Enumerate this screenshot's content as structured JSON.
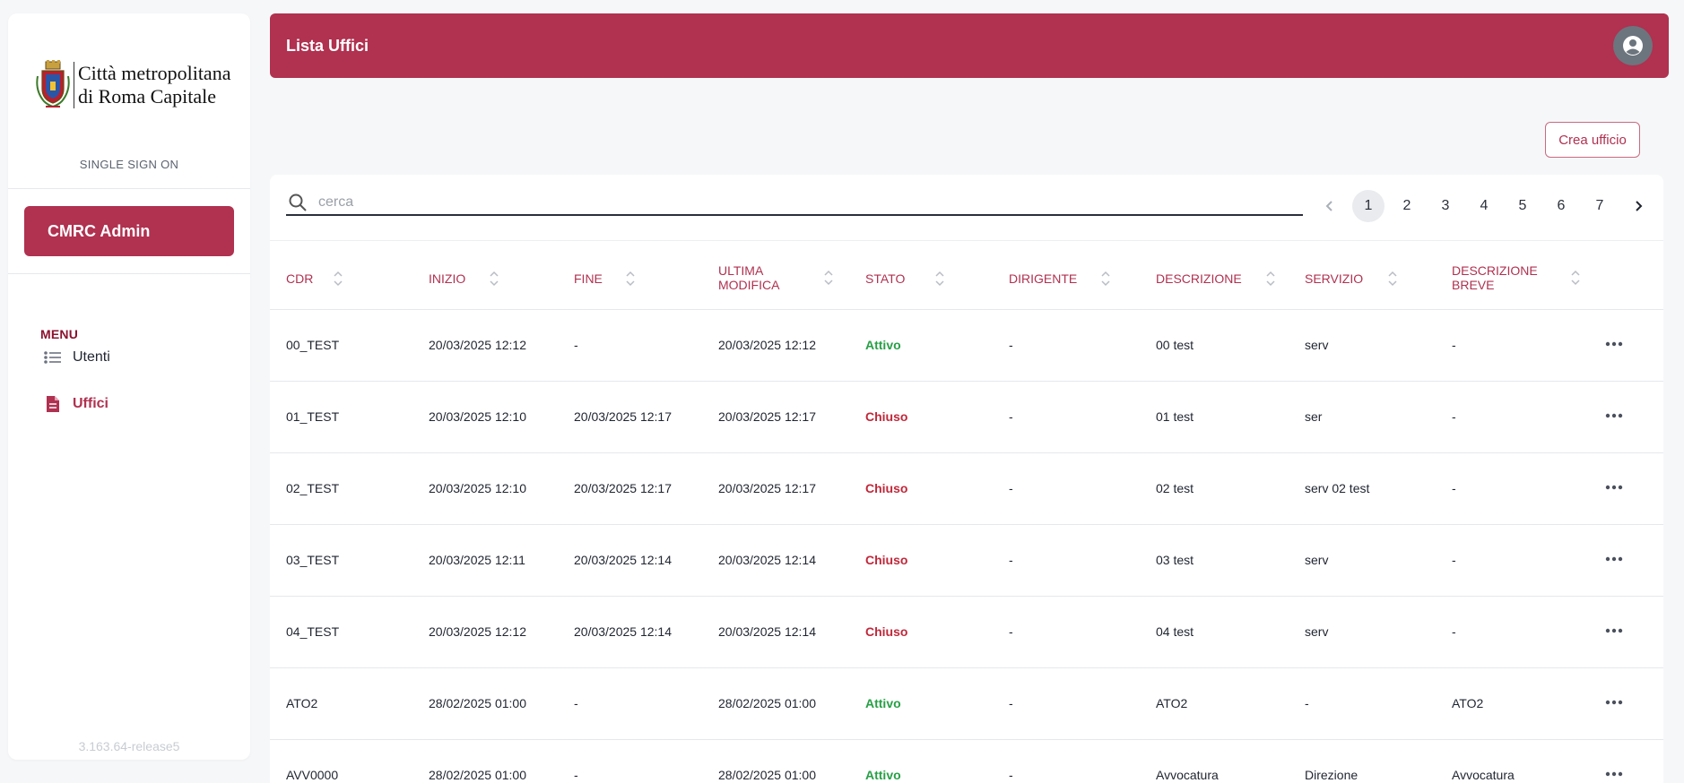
{
  "sidebar": {
    "logo_line1": "Città metropolitana",
    "logo_line2": "di Roma Capitale",
    "sso": "SINGLE SIGN ON",
    "admin_button": "CMRC Admin",
    "menu_heading": "MENU",
    "items": [
      {
        "label": "Utenti",
        "icon": "list-icon"
      },
      {
        "label": "Uffici",
        "icon": "document-icon",
        "active": true
      }
    ],
    "version": "3.163.64-release5"
  },
  "header": {
    "title": "Lista Uffici",
    "user_icon": "user-circle-icon"
  },
  "actions": {
    "create_label": "Crea ufficio"
  },
  "search": {
    "placeholder": "cerca"
  },
  "pagination": {
    "pages": [
      "1",
      "2",
      "3",
      "4",
      "5",
      "6",
      "7"
    ],
    "current": "1"
  },
  "table": {
    "columns": [
      "CDR",
      "INIZIO",
      "FINE",
      "ULTIMA MODIFICA",
      "STATO",
      "DIRIGENTE",
      "DESCRIZIONE",
      "SERVIZIO",
      "DESCRIZIONE BREVE"
    ],
    "column_lines": [
      [
        "CDR"
      ],
      [
        "INIZIO"
      ],
      [
        "FINE"
      ],
      [
        "ULTIMA",
        "MODIFICA"
      ],
      [
        "STATO"
      ],
      [
        "DIRIGENTE"
      ],
      [
        "DESCRIZIONE"
      ],
      [
        "SERVIZIO"
      ],
      [
        "DESCRIZIONE",
        "BREVE"
      ]
    ],
    "rows": [
      {
        "cdr": "00_TEST",
        "inizio": "20/03/2025 12:12",
        "fine": "-",
        "ultima": "20/03/2025 12:12",
        "stato": "Attivo",
        "dirigente": "-",
        "descrizione": "00 test",
        "servizio": "serv",
        "breve": "-"
      },
      {
        "cdr": "01_TEST",
        "inizio": "20/03/2025 12:10",
        "fine": "20/03/2025 12:17",
        "ultima": "20/03/2025 12:17",
        "stato": "Chiuso",
        "dirigente": "-",
        "descrizione": "01 test",
        "servizio": "ser",
        "breve": "-"
      },
      {
        "cdr": "02_TEST",
        "inizio": "20/03/2025 12:10",
        "fine": "20/03/2025 12:17",
        "ultima": "20/03/2025 12:17",
        "stato": "Chiuso",
        "dirigente": "-",
        "descrizione": "02 test",
        "servizio": "serv 02 test",
        "breve": "-"
      },
      {
        "cdr": "03_TEST",
        "inizio": "20/03/2025 12:11",
        "fine": "20/03/2025 12:14",
        "ultima": "20/03/2025 12:14",
        "stato": "Chiuso",
        "dirigente": "-",
        "descrizione": "03 test",
        "servizio": "serv",
        "breve": "-"
      },
      {
        "cdr": "04_TEST",
        "inizio": "20/03/2025 12:12",
        "fine": "20/03/2025 12:14",
        "ultima": "20/03/2025 12:14",
        "stato": "Chiuso",
        "dirigente": "-",
        "descrizione": "04 test",
        "servizio": "serv",
        "breve": "-"
      },
      {
        "cdr": "ATO2",
        "inizio": "28/02/2025 01:00",
        "fine": "-",
        "ultima": "28/02/2025 01:00",
        "stato": "Attivo",
        "dirigente": "-",
        "descrizione": "ATO2",
        "servizio": "-",
        "breve": "ATO2"
      },
      {
        "cdr": "AVV0000",
        "inizio": "28/02/2025 01:00",
        "fine": "-",
        "ultima": "28/02/2025 01:00",
        "stato": "Attivo",
        "dirigente": "-",
        "descrizione": "Avvocatura",
        "servizio": "Direzione",
        "breve": "Avvocatura"
      }
    ]
  },
  "colors": {
    "brand": "#b03150",
    "active": "#27a046",
    "closed": "#c0283a"
  }
}
